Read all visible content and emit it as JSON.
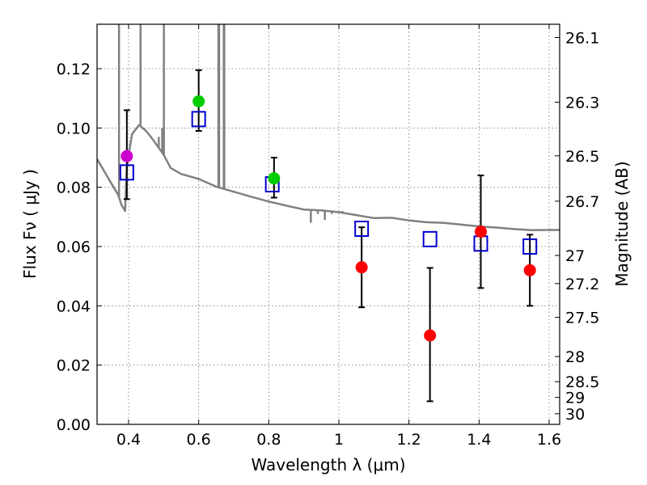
{
  "chart_data": {
    "type": "scatter",
    "title": "",
    "xlabel": "Wavelength  λ (μm)",
    "ylabel": "Flux  Fν  ( μJy )",
    "ylabel_right": "Magnitude (AB)",
    "xlim": [
      0.31,
      1.63
    ],
    "ylim": [
      0.0,
      0.135
    ],
    "grid": true,
    "x_ticks": [
      {
        "value": 0.4,
        "label": "0.4"
      },
      {
        "value": 0.6,
        "label": "0.6"
      },
      {
        "value": 0.8,
        "label": "0.8"
      },
      {
        "value": 1.0,
        "label": "1"
      },
      {
        "value": 1.2,
        "label": "1.2"
      },
      {
        "value": 1.4,
        "label": "1.4"
      },
      {
        "value": 1.6,
        "label": "1.6"
      }
    ],
    "y_ticks": [
      {
        "value": 0.0,
        "label": "0.00"
      },
      {
        "value": 0.02,
        "label": "0.02"
      },
      {
        "value": 0.04,
        "label": "0.04"
      },
      {
        "value": 0.06,
        "label": "0.06"
      },
      {
        "value": 0.08,
        "label": "0.08"
      },
      {
        "value": 0.1,
        "label": "0.10"
      },
      {
        "value": 0.12,
        "label": "0.12"
      }
    ],
    "right_ticks": [
      {
        "label": "26.1",
        "flux": 0.1305
      },
      {
        "label": "26.3",
        "flux": 0.1087
      },
      {
        "label": "26.5",
        "flux": 0.0906
      },
      {
        "label": "26.7",
        "flux": 0.0753
      },
      {
        "label": "27",
        "flux": 0.057
      },
      {
        "label": "27.2",
        "flux": 0.0475
      },
      {
        "label": "27.5",
        "flux": 0.0361
      },
      {
        "label": "28",
        "flux": 0.0229
      },
      {
        "label": "28.5",
        "flux": 0.0144
      },
      {
        "label": "29",
        "flux": 0.0091
      },
      {
        "label": "30",
        "flux": 0.0036
      }
    ],
    "colors": {
      "model_sed": "#808080",
      "model_photometry": "#0000cc",
      "errorbar": "#000000",
      "uv_point": "#cc00cc",
      "optical_point": "#00cc00",
      "nir_point": "#ff0000"
    },
    "model_sed": {
      "continuum": [
        [
          0.31,
          0.0895
        ],
        [
          0.33,
          0.0855
        ],
        [
          0.35,
          0.0815
        ],
        [
          0.37,
          0.0775
        ],
        [
          0.38,
          0.074
        ],
        [
          0.39,
          0.072
        ],
        [
          0.395,
          0.087
        ],
        [
          0.41,
          0.098
        ],
        [
          0.43,
          0.101
        ],
        [
          0.45,
          0.099
        ],
        [
          0.47,
          0.096
        ],
        [
          0.5,
          0.091
        ],
        [
          0.52,
          0.0865
        ],
        [
          0.55,
          0.0845
        ],
        [
          0.6,
          0.0828
        ],
        [
          0.65,
          0.0802
        ],
        [
          0.7,
          0.0785
        ],
        [
          0.75,
          0.0768
        ],
        [
          0.8,
          0.0752
        ],
        [
          0.85,
          0.0738
        ],
        [
          0.9,
          0.0725
        ],
        [
          0.95,
          0.0722
        ],
        [
          1.0,
          0.0716
        ],
        [
          1.05,
          0.0706
        ],
        [
          1.1,
          0.0696
        ],
        [
          1.15,
          0.0697
        ],
        [
          1.2,
          0.0688
        ],
        [
          1.25,
          0.0682
        ],
        [
          1.3,
          0.068
        ],
        [
          1.35,
          0.0674
        ],
        [
          1.4,
          0.0668
        ],
        [
          1.45,
          0.0664
        ],
        [
          1.5,
          0.0659
        ],
        [
          1.55,
          0.0655
        ],
        [
          1.6,
          0.0656
        ],
        [
          1.63,
          0.0656
        ]
      ],
      "emission_lines": [
        [
          0.3727,
          0.135
        ],
        [
          0.4341,
          0.135
        ],
        [
          0.4861,
          0.097
        ],
        [
          0.4959,
          0.1
        ],
        [
          0.5007,
          0.135
        ],
        [
          0.6563,
          0.135
        ],
        [
          0.6583,
          0.135
        ],
        [
          0.6716,
          0.135
        ],
        [
          0.6731,
          0.135
        ]
      ],
      "absorption_features": [
        [
          0.92,
          0.068
        ],
        [
          0.94,
          0.071
        ],
        [
          0.96,
          0.069
        ],
        [
          0.98,
          0.071
        ],
        [
          1.01,
          0.072
        ]
      ]
    },
    "model_photometry": [
      {
        "x": 0.395,
        "y": 0.085
      },
      {
        "x": 0.6,
        "y": 0.103
      },
      {
        "x": 0.81,
        "y": 0.081
      },
      {
        "x": 1.065,
        "y": 0.066
      },
      {
        "x": 1.26,
        "y": 0.0625
      },
      {
        "x": 1.405,
        "y": 0.061
      },
      {
        "x": 1.545,
        "y": 0.06
      }
    ],
    "observed": [
      {
        "x": 0.395,
        "y": 0.0905,
        "yerr_low": 0.076,
        "yerr_high": 0.106,
        "color_key": "uv_point"
      },
      {
        "x": 0.6,
        "y": 0.109,
        "yerr_low": 0.099,
        "yerr_high": 0.1195,
        "color_key": "optical_point"
      },
      {
        "x": 0.815,
        "y": 0.083,
        "yerr_low": 0.0765,
        "yerr_high": 0.09,
        "color_key": "optical_point"
      },
      {
        "x": 1.065,
        "y": 0.053,
        "yerr_low": 0.0395,
        "yerr_high": 0.0665,
        "color_key": "nir_point"
      },
      {
        "x": 1.26,
        "y": 0.03,
        "yerr_low": 0.0078,
        "yerr_high": 0.0528,
        "color_key": "nir_point"
      },
      {
        "x": 1.405,
        "y": 0.065,
        "yerr_low": 0.046,
        "yerr_high": 0.084,
        "color_key": "nir_point"
      },
      {
        "x": 1.545,
        "y": 0.052,
        "yerr_low": 0.04,
        "yerr_high": 0.064,
        "color_key": "nir_point"
      }
    ]
  }
}
